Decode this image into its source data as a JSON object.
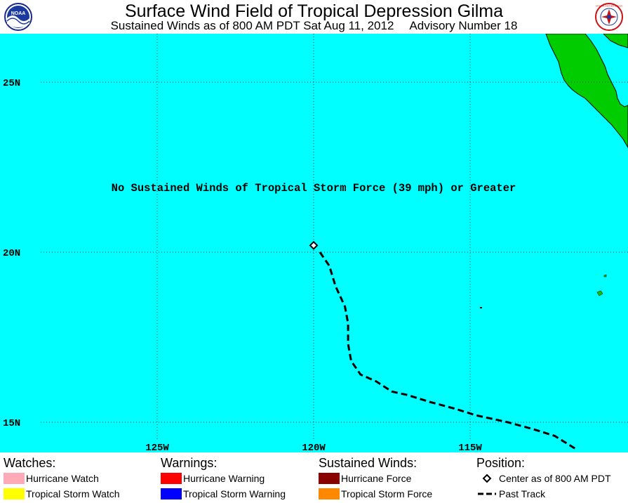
{
  "header": {
    "title": "Surface Wind Field of Tropical Depression Gilma",
    "subtitle": "Sustained Winds as of 800 AM PDT Sat Aug 11, 2012",
    "advisory": "Advisory Number 18",
    "left_logo_text": "NOAA",
    "right_logo_text": "NATIONAL WEATHER SERVICE"
  },
  "map": {
    "message": "No Sustained Winds of Tropical Storm Force (39 mph) or Greater",
    "latitude_labels": [
      "25N",
      "20N",
      "15N"
    ],
    "longitude_labels": [
      "125W",
      "120W",
      "115W"
    ],
    "latitudes": [
      25,
      20,
      15
    ],
    "longitudes": [
      -125,
      -120,
      -115
    ],
    "center_position": {
      "lat": 20.2,
      "lon": -120.0
    },
    "past_track": [
      {
        "lat": 20.0,
        "lon": -119.8
      },
      {
        "lat": 19.6,
        "lon": -119.5
      },
      {
        "lat": 19.0,
        "lon": -119.3
      },
      {
        "lat": 18.4,
        "lon": -119.0
      },
      {
        "lat": 17.9,
        "lon": -118.9
      },
      {
        "lat": 17.3,
        "lon": -118.9
      },
      {
        "lat": 16.8,
        "lon": -118.8
      },
      {
        "lat": 16.4,
        "lon": -118.5
      },
      {
        "lat": 16.2,
        "lon": -118.0
      },
      {
        "lat": 15.9,
        "lon": -117.5
      },
      {
        "lat": 15.8,
        "lon": -117.0
      },
      {
        "lat": 15.6,
        "lon": -116.3
      },
      {
        "lat": 15.4,
        "lon": -115.5
      },
      {
        "lat": 15.2,
        "lon": -114.8
      },
      {
        "lat": 15.0,
        "lon": -113.8
      },
      {
        "lat": 14.8,
        "lon": -113.0
      },
      {
        "lat": 14.6,
        "lon": -112.3
      },
      {
        "lat": 14.2,
        "lon": -111.6
      }
    ],
    "colors": {
      "ocean": "#00ffff",
      "land": "#00cc00",
      "track": "#000000"
    }
  },
  "legend": {
    "watches": {
      "heading": "Watches:",
      "items": [
        {
          "label": "Hurricane Watch",
          "color": "#ffaab6"
        },
        {
          "label": "Tropical Storm Watch",
          "color": "#ffff00"
        }
      ]
    },
    "warnings": {
      "heading": "Warnings:",
      "items": [
        {
          "label": "Hurricane Warning",
          "color": "#ff0000"
        },
        {
          "label": "Tropical Storm Warning",
          "color": "#0000ff"
        }
      ]
    },
    "winds": {
      "heading": "Sustained Winds:",
      "items": [
        {
          "label": "Hurricane Force",
          "color": "#880000"
        },
        {
          "label": "Tropical Storm Force",
          "color": "#ff8800"
        }
      ]
    },
    "position": {
      "heading": "Position:",
      "items": [
        {
          "label": "Center as of 800 AM PDT",
          "icon": "diamond-icon"
        },
        {
          "label": "Past Track",
          "icon": "dashed-line-icon"
        }
      ]
    }
  }
}
